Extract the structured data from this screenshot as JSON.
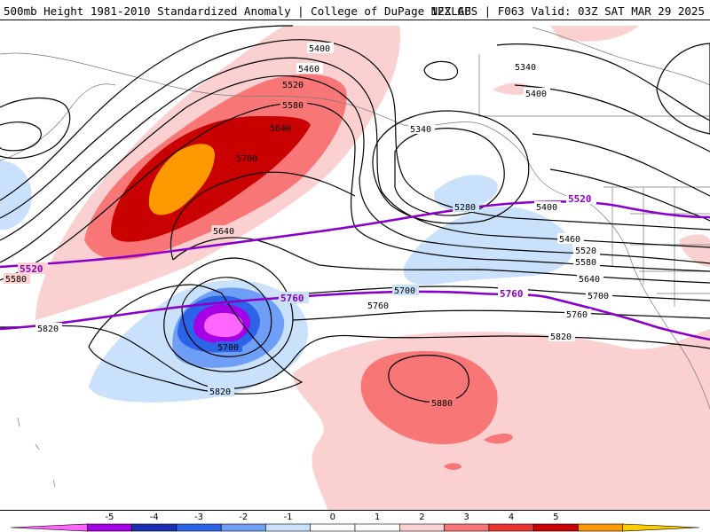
{
  "header": {
    "title_left": "500mb Height 1981-2010 Standardized Anomaly | College of DuPage NEXLAB",
    "title_right": "12Z GFS | F063 Valid: 03Z SAT MAR 29 2025"
  },
  "contour_labels": {
    "h5400_a": "5400",
    "h5460": "5460",
    "h5520_a": "5520",
    "h5580_a": "5580",
    "h5640_a": "5640",
    "h5700_a": "5700",
    "h5340_a": "5340",
    "h5340_b": "5340",
    "h5400_b": "5400",
    "h5280": "5280",
    "h5400_c": "5400",
    "h5460_b": "5460",
    "h5520_b": "5520",
    "h5580_b": "5580",
    "h5640_b": "5640",
    "h5700_b": "5700",
    "h5760_b": "5760",
    "h5820_b": "5820",
    "h5640_c": "5640",
    "h5580_c": "5580",
    "h5820_a": "5820",
    "h5700_c": "5700",
    "h5760_a": "5760",
    "h5700_d": "5700",
    "h5820_c": "5820",
    "h5880": "5880"
  },
  "highlight_labels": {
    "p5520_w": "5520",
    "p5520_e": "5520",
    "p5760_w": "5760",
    "p5760_e": "5760"
  },
  "colorbar": {
    "ticks": [
      "-5",
      "-4",
      "-3",
      "-2",
      "-1",
      "0",
      "1",
      "2",
      "3",
      "4",
      "5"
    ],
    "colors": [
      "#ff66ff",
      "#a600e6",
      "#1b2fb5",
      "#2b64e8",
      "#6f9ef7",
      "#c9e1fb",
      "#ffffff",
      "#ffffff",
      "#fbd0d0",
      "#f87676",
      "#e8362f",
      "#c80000",
      "#ff9900",
      "#ffcc00"
    ]
  }
}
